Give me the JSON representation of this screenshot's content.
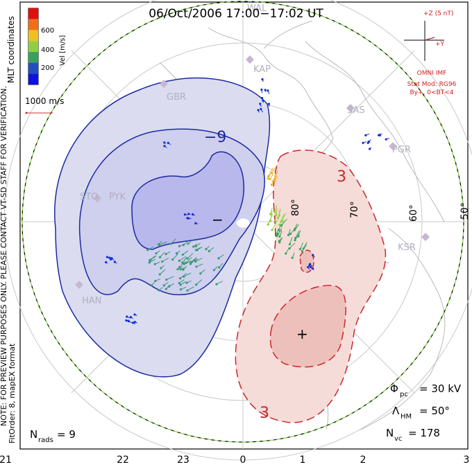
{
  "title": "06/Oct/2006 17:00−17:02 UT",
  "mlt_coordinates": "MLT coordinates",
  "colorbar": {
    "label": "Vel [m/s]",
    "ticks": [
      "600",
      "400",
      "200"
    ],
    "colors": [
      "#e01010",
      "#f07018",
      "#f0c020",
      "#90d040",
      "#3aa060",
      "#2050c0",
      "#1010e0"
    ]
  },
  "vector_scale": "1000 m/s",
  "imf": {
    "axis_z": "+Z (5 nT)",
    "axis_y": "+Y",
    "source": "OMNI IMF",
    "model": "Stat Mod: RG96",
    "condition": "By+, 0<BT<4"
  },
  "stations": [
    "KAP",
    "GBR",
    "SAS",
    "PGR",
    "STO",
    "PYK",
    "KSR",
    "HAN",
    "WAL"
  ],
  "latitude_labels": [
    "60°",
    "50°",
    "70°",
    "80°"
  ],
  "contours": {
    "negative_label": "−9",
    "positive_label_top": "3",
    "positive_label_bottom": "3",
    "min_marker": "−",
    "max_marker": "+"
  },
  "stats": {
    "phi_label": "Φ",
    "phi_sub": "pc",
    "phi_value": "= 30 kV",
    "lambda_label": "Λ",
    "lambda_sub": "HM",
    "lambda_value": "= 50°",
    "nvc_label": "N",
    "nvc_sub": "vc",
    "nvc_value": "= 178",
    "nrads_label": "N",
    "nrads_sub": "rads",
    "nrads_value": "= 9"
  },
  "note_line1": "NOTE: FOR PREVIEW PURPOSES ONLY. PLEASE CONTACT VT-SD STAFF FOR VERIFICATION.",
  "note_line2": "FitOrder: 8, mapEX format",
  "mlt_ticks": [
    "21",
    "22",
    "23",
    "0",
    "1",
    "2",
    "3"
  ],
  "colors": {
    "negative_fill": "#dcdcf0",
    "negative_core": "#b8b8ec",
    "negative_line": "#1a2aa0",
    "positive_fill": "#f6dcd8",
    "positive_core": "#eec0bc",
    "positive_line": "#c8282a",
    "boundary": "#7ad43a",
    "coast": "#b8b8b8"
  }
}
